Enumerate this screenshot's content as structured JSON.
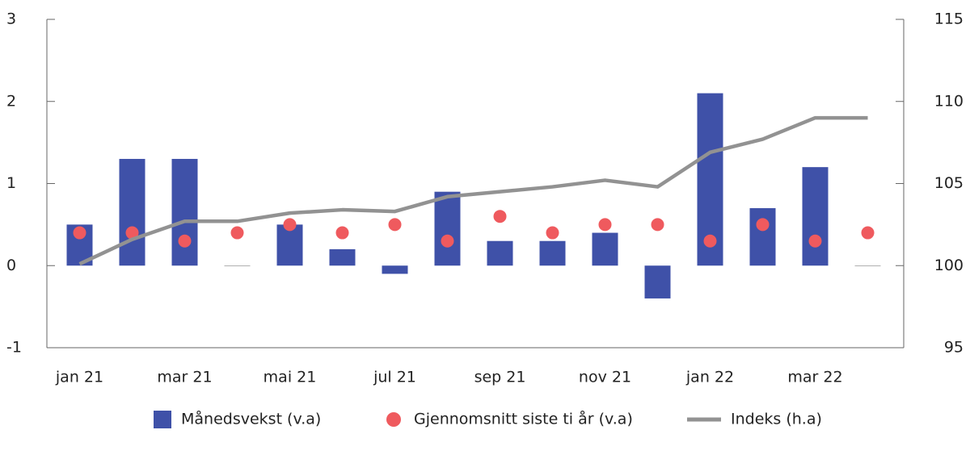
{
  "chart_data": {
    "type": "bar-line",
    "categories": [
      "jan 21",
      null,
      "mar 21",
      null,
      "mai 21",
      null,
      "jul 21",
      null,
      "sep 21",
      null,
      "nov 21",
      null,
      "jan 22",
      null,
      "mar 22",
      null
    ],
    "series": [
      {
        "name": "Månedsvekst (v.a)",
        "type": "bar",
        "color": "#3f51a8",
        "values": [
          0.5,
          1.3,
          1.3,
          0,
          0.5,
          0.2,
          -0.1,
          0.9,
          0.3,
          0.3,
          0.4,
          -0.4,
          2.1,
          0.7,
          1.2,
          0
        ]
      },
      {
        "name": "Gjennomsnitt siste ti år (v.a)",
        "type": "scatter",
        "color": "#ef5a5e",
        "values": [
          0.4,
          0.4,
          0.3,
          0.4,
          0.5,
          0.4,
          0.5,
          0.3,
          0.6,
          0.4,
          0.5,
          0.5,
          0.3,
          0.5,
          0.3,
          0.4
        ]
      },
      {
        "name": "Indeks (h.a)",
        "type": "line",
        "axis": "y2",
        "color": "#929292",
        "values": [
          100.1,
          101.6,
          102.7,
          102.7,
          103.2,
          103.4,
          103.3,
          104.2,
          104.5,
          104.8,
          105.2,
          104.8,
          106.9,
          107.7,
          109.0,
          109.0
        ]
      }
    ],
    "ylim": [
      -1,
      3
    ],
    "yticks": [
      -1,
      0,
      1,
      2,
      3
    ],
    "y2lim": [
      95,
      115
    ],
    "y2ticks": [
      95,
      100,
      105,
      110,
      115
    ],
    "legend": "bottom"
  }
}
